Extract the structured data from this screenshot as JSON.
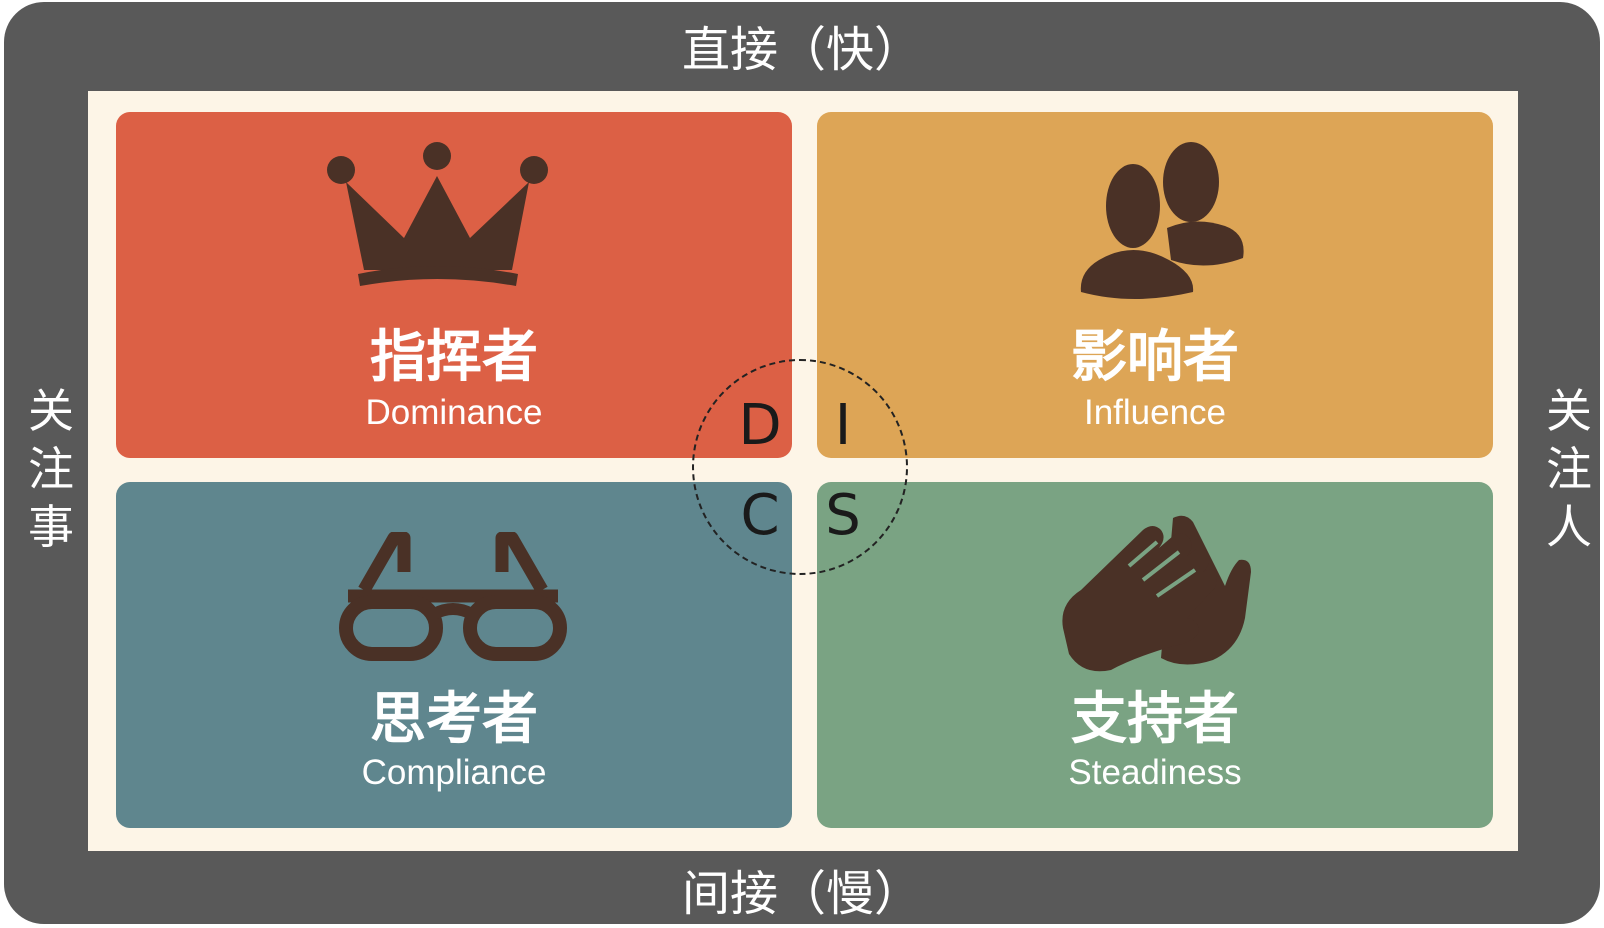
{
  "axes": {
    "top": "直接（快）",
    "bottom": "间接（慢）",
    "left": "关注事",
    "right": "关注人"
  },
  "quadrants": {
    "d": {
      "title_zh": "指挥者",
      "title_en": "Dominance",
      "letter": "D",
      "color": "#dc6045",
      "icon": "crown-icon"
    },
    "i": {
      "title_zh": "影响者",
      "title_en": "Influence",
      "letter": "I",
      "color": "#dda556",
      "icon": "people-icon"
    },
    "c": {
      "title_zh": "思考者",
      "title_en": "Compliance",
      "letter": "C",
      "color": "#5f868e",
      "icon": "glasses-icon"
    },
    "s": {
      "title_zh": "支持者",
      "title_en": "Steadiness",
      "letter": "S",
      "color": "#7aa383",
      "icon": "clapping-hands-icon"
    }
  },
  "colors": {
    "frame": "#595959",
    "board": "#fdf5e7",
    "icon": "#4a3126"
  }
}
